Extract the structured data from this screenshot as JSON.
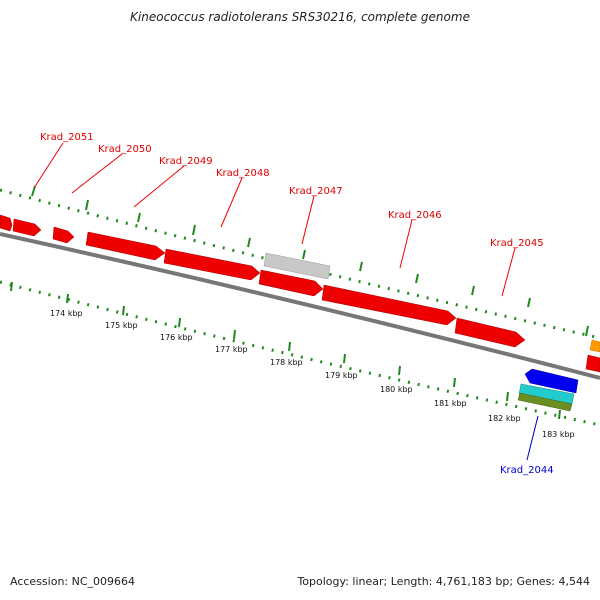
{
  "title": "Kineococcus radiotolerans SRS30216, complete genome",
  "accession": "Accession: NC_009664",
  "summary": "Topology: linear; Length: 4,761,183 bp; Genes: 4,544",
  "kbp_labels": [
    "174 kbp",
    "175 kbp",
    "176 kbp",
    "177 kbp",
    "178 kbp",
    "179 kbp",
    "180 kbp",
    "181 kbp",
    "182 kbp",
    "183 kbp"
  ],
  "forward_genes": [
    "Krad_2051",
    "Krad_2050",
    "Krad_2049",
    "Krad_2048",
    "Krad_2047",
    "Krad_2046",
    "Krad_2045"
  ],
  "reverse_genes": [
    "Krad_2044"
  ],
  "colors": {
    "forward_gene": "#ee0000",
    "forward_label": "#dd0000",
    "reverse_gene": "#0000ee",
    "reverse_label": "#0000cc",
    "pseudo_gene": "#c8c8c8",
    "backbone": "#777777",
    "tick": "#228822",
    "cyan_feature": "#22cccc",
    "olive_feature": "#6b8e23",
    "orange_feature": "#ff9900"
  }
}
